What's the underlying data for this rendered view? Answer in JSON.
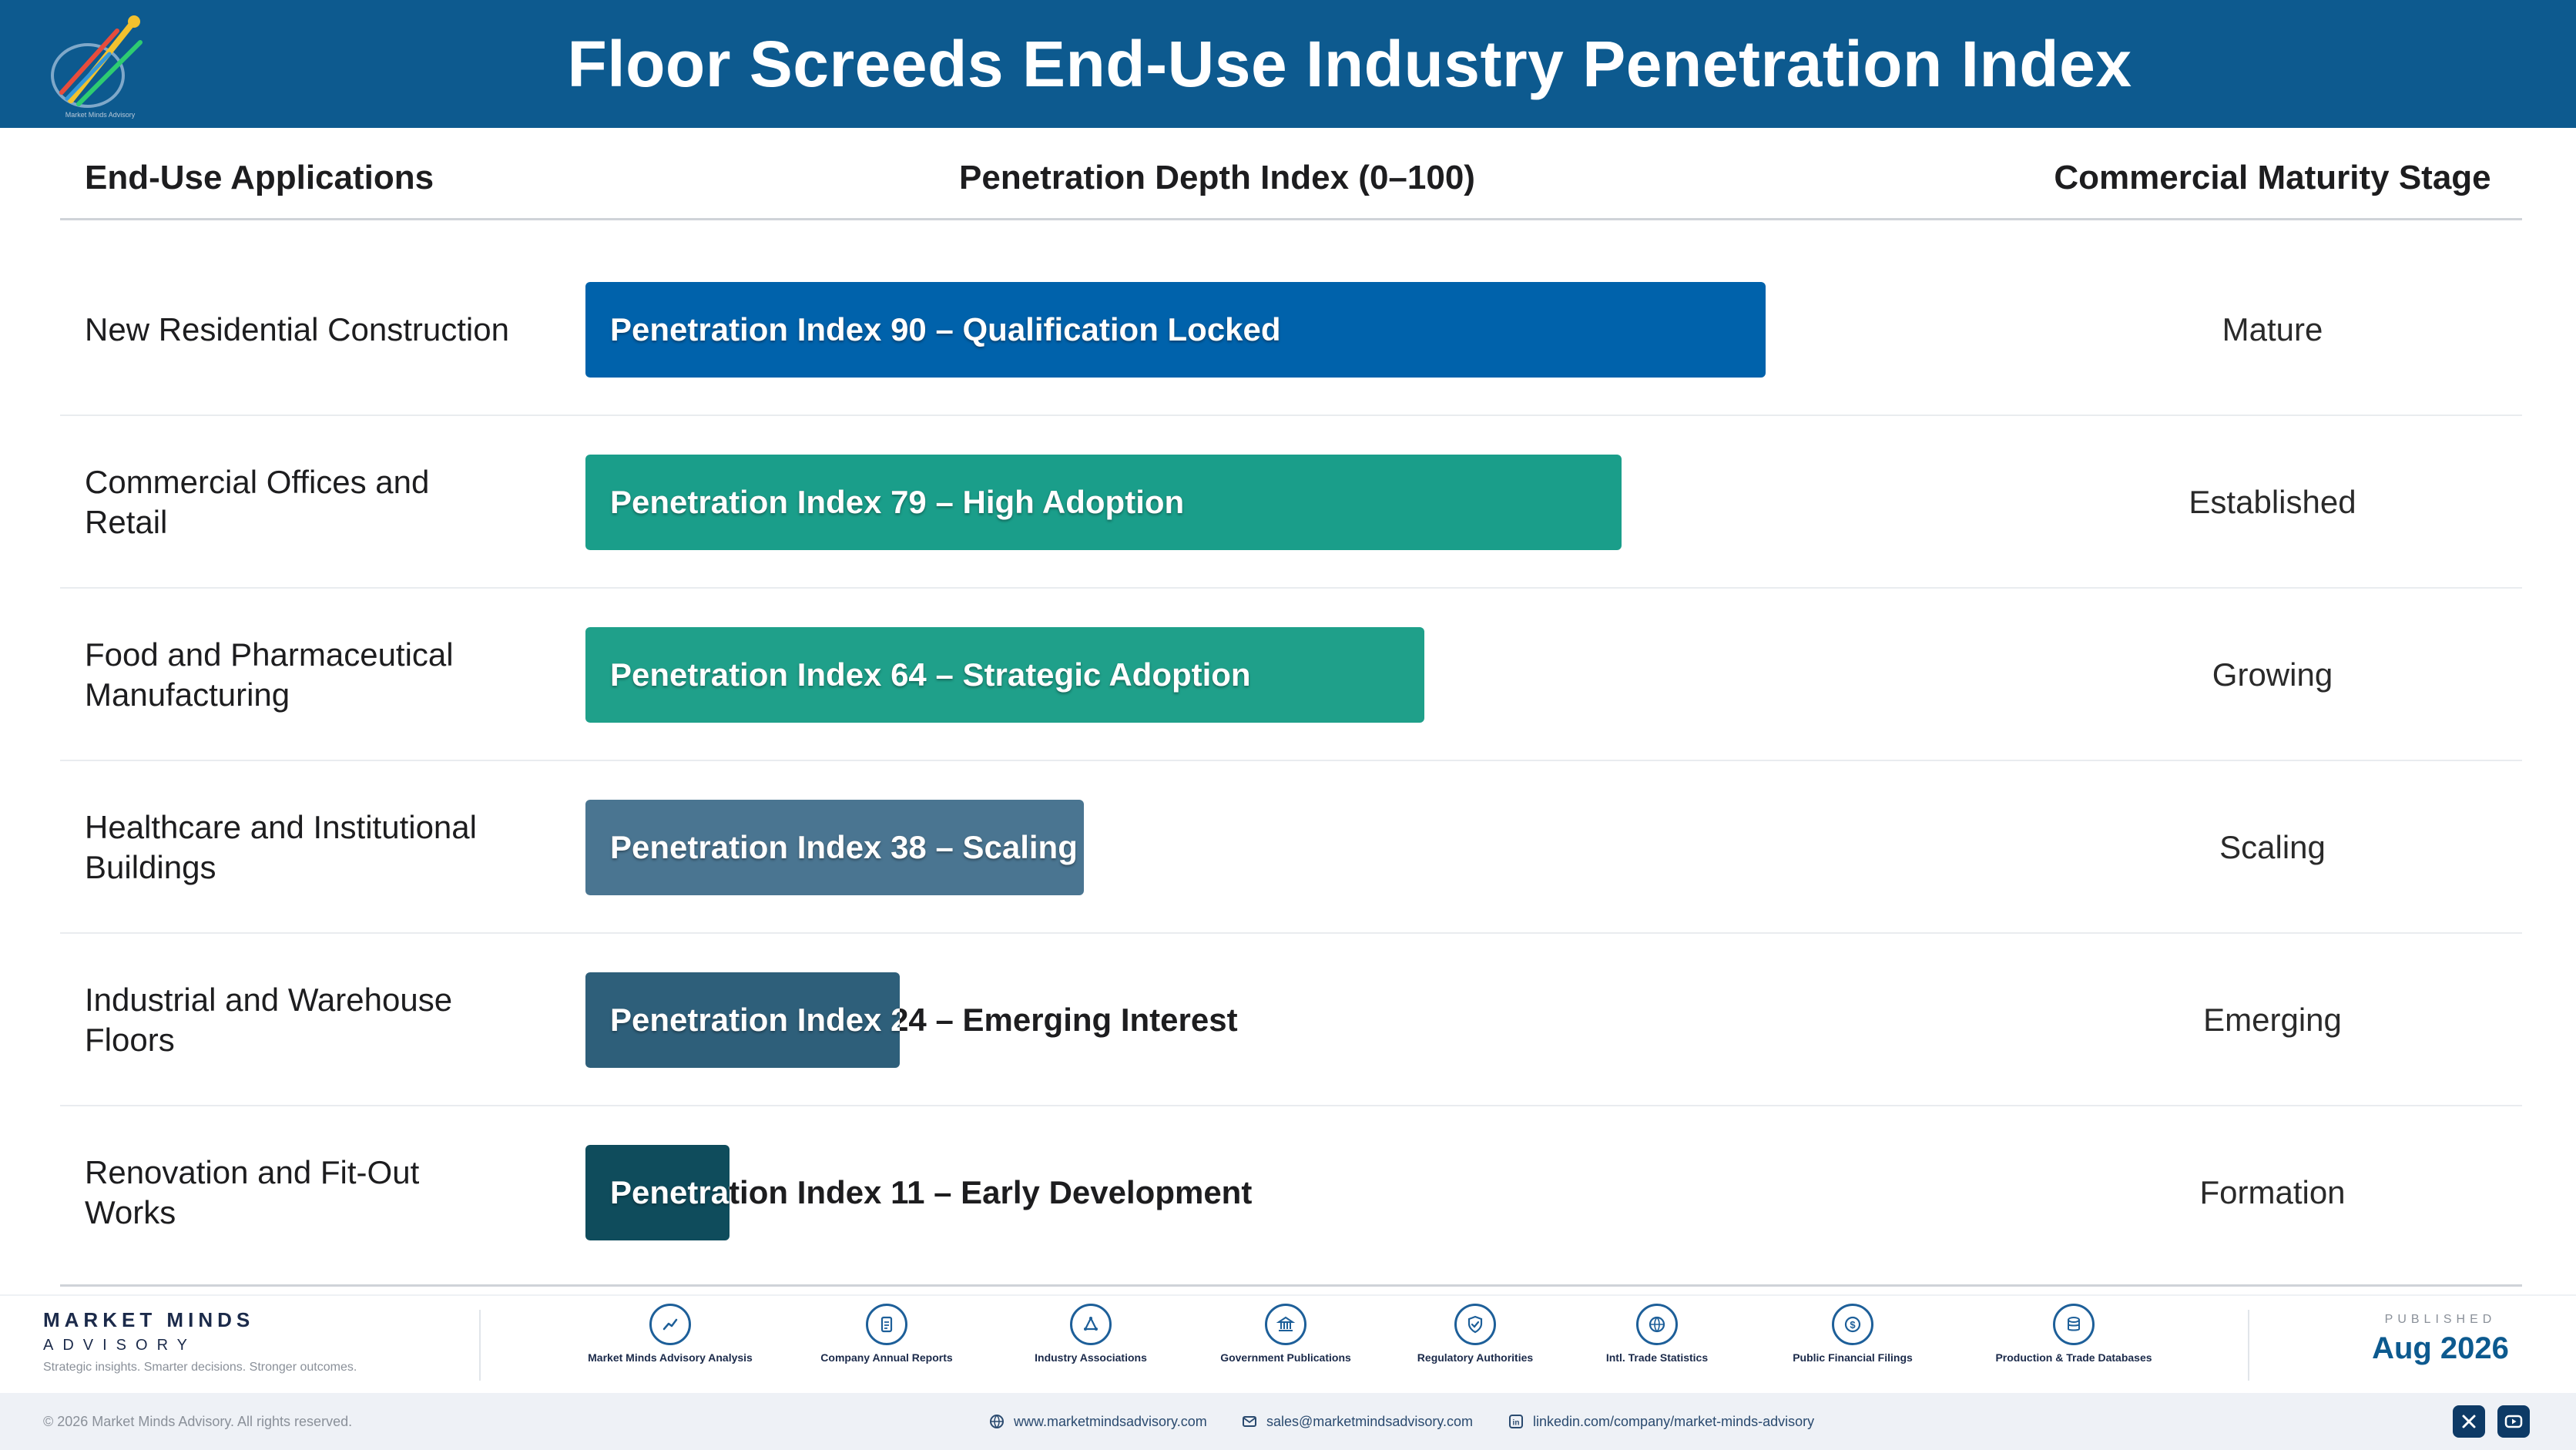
{
  "header": {
    "title": "Floor Screeds End-Use Industry Penetration Index",
    "logo_icon": "rocket-logo-icon",
    "colors": {
      "header_bg": "#0d5a8f"
    }
  },
  "columns": {
    "applications": "End-Use Applications",
    "depth": "Penetration Depth Index (0–100)",
    "stage": "Commercial Maturity Stage"
  },
  "chart_data": {
    "type": "bar",
    "title": "Floor Screeds End-Use Industry Penetration Index",
    "xlabel": "Penetration Depth Index (0–100)",
    "xlim": [
      0,
      100
    ],
    "orientation": "horizontal",
    "categories": [
      "New Residential Construction",
      "Commercial Offices and Retail",
      "Food and Pharmaceutical Manufacturing",
      "Healthcare and Institutional Buildings",
      "Industrial and Warehouse Floors",
      "Renovation and Fit-Out Works"
    ],
    "values": [
      90,
      79,
      64,
      38,
      24,
      11
    ],
    "bar_labels": [
      "Penetration Index 90 – Qualification Locked",
      "Penetration Index 79 – High Adoption",
      "Penetration Index 64 – Strategic Adoption",
      "Penetration Index 38 – Scaling",
      "Penetration Index 24 – Emerging Interest",
      "Penetration Index 11 – Early Development"
    ],
    "stages": [
      "Mature",
      "Established",
      "Growing",
      "Scaling",
      "Emerging",
      "Formation"
    ],
    "colors": [
      "#0062ab",
      "#1a9e8a",
      "#1fa08a",
      "#4a7591",
      "#2e5f7a",
      "#0f4c5c"
    ],
    "grid": false,
    "legend": "none"
  },
  "rows": [
    {
      "app": "New Residential Construction",
      "stage": "Mature"
    },
    {
      "app": "Commercial Offices and Retail",
      "stage": "Established"
    },
    {
      "app": "Food and Pharmaceutical Manufacturing",
      "stage": "Growing"
    },
    {
      "app": "Healthcare and Institutional Buildings",
      "stage": "Scaling"
    },
    {
      "app": "Industrial and Warehouse Floors",
      "stage": "Emerging"
    },
    {
      "app": "Renovation and Fit-Out Works",
      "stage": "Formation"
    }
  ],
  "footer": {
    "brand_name": "MARKET MINDS",
    "brand_sub": "ADVISORY",
    "tagline": "Strategic insights. Smarter decisions. Stronger outcomes.",
    "sources": [
      {
        "label": "Market Minds Advisory Analysis",
        "icon": "trend-chart-icon"
      },
      {
        "label": "Company Annual Reports",
        "icon": "document-icon"
      },
      {
        "label": "Industry Associations",
        "icon": "network-icon"
      },
      {
        "label": "Government Publications",
        "icon": "government-building-icon"
      },
      {
        "label": "Regulatory Authorities",
        "icon": "shield-check-icon"
      },
      {
        "label": "Intl. Trade Statistics",
        "icon": "globe-icon"
      },
      {
        "label": "Public Financial Filings",
        "icon": "dollar-coin-icon"
      },
      {
        "label": "Production & Trade Databases",
        "icon": "database-icon"
      }
    ],
    "published_label": "PUBLISHED",
    "published_date": "Aug 2026"
  },
  "subfooter": {
    "copyright": "© 2026 Market Minds Advisory. All rights reserved.",
    "website": "www.marketmindsadvisory.com",
    "email": "sales@marketmindsadvisory.com",
    "linkedin": "linkedin.com/company/market-minds-advisory"
  }
}
